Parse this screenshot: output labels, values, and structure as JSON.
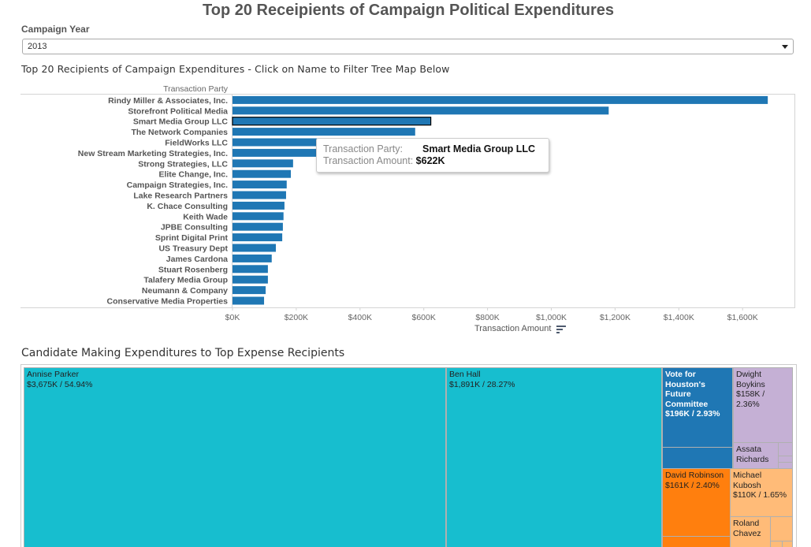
{
  "page": {
    "title": "Top 20 Receipients of Campaign Political Expenditures"
  },
  "filter": {
    "label": "Campaign Year",
    "selected": "2013",
    "icon": "chevron-down-icon"
  },
  "tooltip": {
    "party_label": "Transaction Party:",
    "party_value": "Smart Media Group LLC",
    "amount_label": "Transaction Amount:",
    "amount_value": "$622K"
  },
  "sort_icon": "sort-descending-icon",
  "colors": {
    "bar": "#1f77b4",
    "teal": "#17becf",
    "blue": "#1f77b4",
    "lavender": "#c5b0d5",
    "orange": "#ff7f0e",
    "light_orange": "#ffbb78"
  },
  "chart_data": [
    {
      "type": "bar",
      "orientation": "horizontal",
      "title": "Top 20 Recipients of Campaign Expenditures - Click on Name to Filter Tree Map Below",
      "ylabel": "Transaction Party",
      "xlabel": "Transaction Amount",
      "xlim": [
        0,
        1750
      ],
      "x_unit": "K",
      "xticks": [
        0,
        200,
        400,
        600,
        800,
        1000,
        1200,
        1400,
        1600
      ],
      "xtick_labels": [
        "$0K",
        "$200K",
        "$400K",
        "$600K",
        "$800K",
        "$1,000K",
        "$1,200K",
        "$1,400K",
        "$1,600K"
      ],
      "highlighted": "Smart Media Group LLC",
      "categories": [
        "Rindy Miller & Associates, Inc.",
        "Storefront Political Media",
        "Smart Media Group LLC",
        "The Network Companies",
        "FieldWorks LLC",
        "New Stream Marketing Strategies, Inc.",
        "Strong Strategies, LLC",
        "Elite Change, Inc.",
        "Campaign Strategies, Inc.",
        "Lake Research Partners",
        "K. Chace Consulting",
        "Keith Wade",
        "JPBE Consulting",
        "Sprint Digital Print",
        "US Treasury Dept",
        "James Cardona",
        "Stuart Rosenberg",
        "Talafery Media Group",
        "Neumann & Company",
        "Conservative Media Properties"
      ],
      "values": [
        1679,
        1180,
        622,
        573,
        400,
        380,
        190,
        183,
        170,
        168,
        163,
        160,
        158,
        156,
        136,
        123,
        111,
        111,
        104,
        99
      ]
    },
    {
      "type": "treemap",
      "title": "Candidate Making Expenditures to Top Expense Recipients",
      "cells": [
        {
          "name": "Annise Parker",
          "value_label": "$3,675K / 54.94%",
          "value": 3675,
          "share": 54.94,
          "color": "teal"
        },
        {
          "name": "Ben Hall",
          "value_label": "$1,891K / 28.27%",
          "value": 1891,
          "share": 28.27,
          "color": "teal"
        },
        {
          "name": "Vote for Houston's Future Committee",
          "value_label": "$196K / 2.93%",
          "value": 196,
          "share": 2.93,
          "color": "blue"
        },
        {
          "name": "Dwight Boykins",
          "value_label": "$158K / 2.36%",
          "value": 158,
          "share": 2.36,
          "color": "lavender"
        },
        {
          "name": "Assata Richards",
          "value_label": "",
          "color": "lavender"
        },
        {
          "name": "David Robinson",
          "value_label": "$161K / 2.40%",
          "value": 161,
          "share": 2.4,
          "color": "orange"
        },
        {
          "name": "Michael Kubosh",
          "value_label": "$110K / 1.65%",
          "value": 110,
          "share": 1.65,
          "color": "light_orange"
        },
        {
          "name": "Roland Chavez",
          "value_label": "",
          "color": "light_orange"
        }
      ]
    }
  ]
}
